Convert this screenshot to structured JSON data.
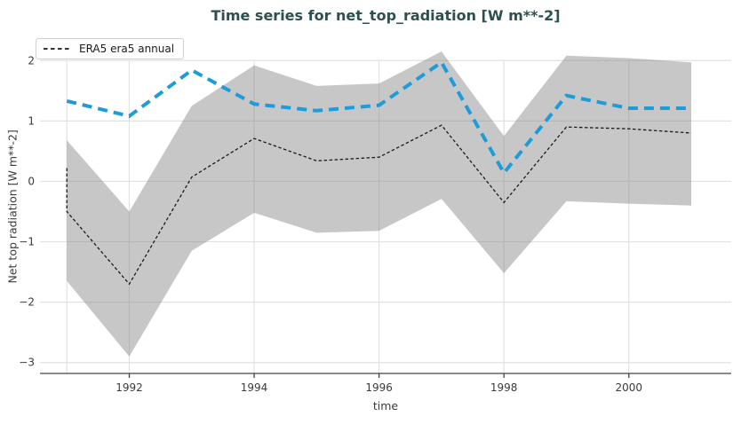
{
  "title": "Time series for net_top_radiation [W m**-2]",
  "legend": {
    "position": "top-left",
    "items": [
      {
        "label": "ERA5 era5 annual",
        "sample": "black-dashed-line"
      }
    ]
  },
  "colors": {
    "title": "#2f4f4f",
    "tick_label": "#3b3b3b",
    "gridline": "#e2e2e2",
    "axis_line": "#444444",
    "band": "rgba(130,130,130,0.45)",
    "black_series": "#1a1a1a",
    "blue_series": "#1e9cd9",
    "legend_border": "#d0d0d0"
  },
  "chart_data": {
    "type": "line",
    "title": "Time series for net_top_radiation [W m**-2]",
    "xlabel": "time",
    "ylabel": "Net top radiation [W m**-2]",
    "grid": true,
    "legend_position": "top-left",
    "x_range": [
      1990.57,
      2001.64
    ],
    "y_range": [
      -3.18,
      2.18
    ],
    "x_ticks": [
      1992,
      1994,
      1996,
      1998,
      2000
    ],
    "y_ticks": [
      2,
      1,
      0,
      -1,
      -2,
      -3
    ],
    "left_boundary_year": 1991,
    "band": {
      "name": "shaded min-max range (gray)",
      "x": [
        1991,
        1992,
        1993,
        1994,
        1995,
        1996,
        1997,
        1998,
        1999,
        2000,
        2001
      ],
      "upper": [
        0.68,
        -0.5,
        1.25,
        1.92,
        1.58,
        1.62,
        2.15,
        0.75,
        2.08,
        2.04,
        1.97
      ],
      "lower": [
        -1.65,
        -2.9,
        -1.15,
        -0.52,
        -0.85,
        -0.82,
        -0.29,
        -1.52,
        -0.33,
        -0.37,
        -0.4
      ]
    },
    "series": [
      {
        "id": "era5-annual-black-dashed",
        "label": "ERA5 era5 annual",
        "style": "thin-dashed",
        "x": [
          1991,
          1991,
          1992,
          1993,
          1994,
          1995,
          1996,
          1997,
          1998,
          1999,
          2000,
          2001
        ],
        "y": [
          0.22,
          -0.5,
          -1.7,
          0.07,
          0.71,
          0.34,
          0.4,
          0.93,
          -0.35,
          0.9,
          0.87,
          0.8
        ]
      },
      {
        "id": "blue-thick-dashed",
        "label": "",
        "style": "thick-dashed",
        "x": [
          1991,
          1992,
          1993,
          1994,
          1995,
          1996,
          1997,
          1998,
          1999,
          2000,
          2001
        ],
        "y": [
          1.33,
          1.08,
          1.84,
          1.28,
          1.17,
          1.26,
          1.97,
          0.14,
          1.42,
          1.21,
          1.21
        ]
      }
    ]
  }
}
